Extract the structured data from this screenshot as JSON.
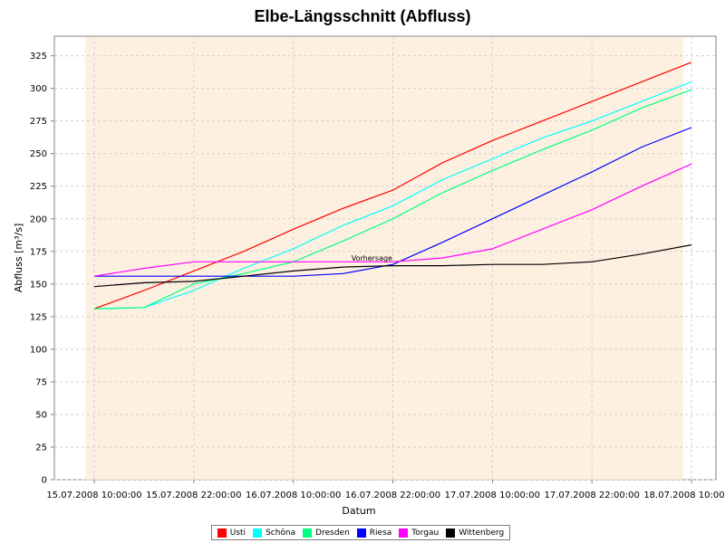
{
  "chart_data": {
    "type": "line",
    "title": "Elbe-Längsschnitt (Abfluss)",
    "xlabel": "Datum",
    "ylabel": "Abfluss [m³/s]",
    "ylim": [
      0,
      340
    ],
    "yticks": [
      0,
      25,
      50,
      75,
      100,
      125,
      150,
      175,
      200,
      225,
      250,
      275,
      300,
      325
    ],
    "xlim": [
      "15.07.2008 10:00:00",
      "18.07.2008 10:00:00"
    ],
    "xticks": [
      "15.07.2008 10:00:00",
      "15.07.2008 22:00:00",
      "16.07.2008 10:00:00",
      "16.07.2008 22:00:00",
      "17.07.2008 10:00:00",
      "17.07.2008 22:00:00",
      "18.07.2008 10:00:00"
    ],
    "grid": true,
    "legend_position": "bottom",
    "forecast_band": {
      "start": "15.07.2008 10:00:00",
      "end": "18.07.2008 09:00:00",
      "color": "#fdf0e0"
    },
    "annotation": {
      "text": "Vorhersage",
      "x": "16.07.2008 17:00:00",
      "y": 168
    },
    "series": [
      {
        "name": "Usti",
        "color": "#ff0000",
        "x": [
          "15.07.2008 10:00:00",
          "15.07.2008 16:00:00",
          "15.07.2008 22:00:00",
          "16.07.2008 04:00:00",
          "16.07.2008 10:00:00",
          "16.07.2008 16:00:00",
          "16.07.2008 22:00:00",
          "17.07.2008 04:00:00",
          "17.07.2008 10:00:00",
          "17.07.2008 16:00:00",
          "17.07.2008 22:00:00",
          "18.07.2008 04:00:00",
          "18.07.2008 10:00:00"
        ],
        "values": [
          131,
          145,
          160,
          175,
          192,
          208,
          222,
          243,
          260,
          275,
          290,
          305,
          320
        ]
      },
      {
        "name": "Schöna",
        "color": "#00ffff",
        "x": [
          "15.07.2008 10:00:00",
          "15.07.2008 16:00:00",
          "15.07.2008 22:00:00",
          "16.07.2008 04:00:00",
          "16.07.2008 10:00:00",
          "16.07.2008 16:00:00",
          "16.07.2008 22:00:00",
          "17.07.2008 04:00:00",
          "17.07.2008 10:00:00",
          "17.07.2008 16:00:00",
          "17.07.2008 22:00:00",
          "18.07.2008 04:00:00",
          "18.07.2008 10:00:00"
        ],
        "values": [
          131,
          132,
          145,
          162,
          177,
          195,
          210,
          230,
          246,
          262,
          275,
          290,
          305
        ]
      },
      {
        "name": "Dresden",
        "color": "#00ff80",
        "x": [
          "15.07.2008 10:00:00",
          "15.07.2008 16:00:00",
          "15.07.2008 22:00:00",
          "16.07.2008 04:00:00",
          "16.07.2008 10:00:00",
          "16.07.2008 16:00:00",
          "16.07.2008 22:00:00",
          "17.07.2008 04:00:00",
          "17.07.2008 10:00:00",
          "17.07.2008 16:00:00",
          "17.07.2008 22:00:00",
          "18.07.2008 04:00:00",
          "18.07.2008 10:00:00"
        ],
        "values": [
          131,
          132,
          150,
          158,
          167,
          183,
          200,
          220,
          237,
          253,
          268,
          285,
          299
        ]
      },
      {
        "name": "Riesa",
        "color": "#0000ff",
        "x": [
          "15.07.2008 10:00:00",
          "15.07.2008 16:00:00",
          "15.07.2008 22:00:00",
          "16.07.2008 04:00:00",
          "16.07.2008 10:00:00",
          "16.07.2008 16:00:00",
          "16.07.2008 22:00:00",
          "17.07.2008 04:00:00",
          "17.07.2008 10:00:00",
          "17.07.2008 16:00:00",
          "17.07.2008 22:00:00",
          "18.07.2008 04:00:00",
          "18.07.2008 10:00:00"
        ],
        "values": [
          156,
          156,
          156,
          156,
          156,
          158,
          165,
          182,
          200,
          218,
          236,
          255,
          270
        ]
      },
      {
        "name": "Torgau",
        "color": "#ff00ff",
        "x": [
          "15.07.2008 10:00:00",
          "15.07.2008 16:00:00",
          "15.07.2008 22:00:00",
          "16.07.2008 04:00:00",
          "16.07.2008 10:00:00",
          "16.07.2008 16:00:00",
          "16.07.2008 22:00:00",
          "17.07.2008 04:00:00",
          "17.07.2008 10:00:00",
          "17.07.2008 16:00:00",
          "17.07.2008 22:00:00",
          "18.07.2008 04:00:00",
          "18.07.2008 10:00:00"
        ],
        "values": [
          156,
          162,
          167,
          167,
          167,
          167,
          167,
          170,
          177,
          192,
          207,
          225,
          242
        ]
      },
      {
        "name": "Wittenberg",
        "color": "#000000",
        "x": [
          "15.07.2008 10:00:00",
          "15.07.2008 16:00:00",
          "15.07.2008 22:00:00",
          "16.07.2008 04:00:00",
          "16.07.2008 10:00:00",
          "16.07.2008 16:00:00",
          "16.07.2008 22:00:00",
          "17.07.2008 04:00:00",
          "17.07.2008 10:00:00",
          "17.07.2008 16:00:00",
          "17.07.2008 22:00:00",
          "18.07.2008 04:00:00",
          "18.07.2008 10:00:00"
        ],
        "values": [
          148,
          151,
          152,
          156,
          160,
          163,
          164,
          164,
          165,
          165,
          167,
          173,
          180
        ]
      }
    ]
  }
}
